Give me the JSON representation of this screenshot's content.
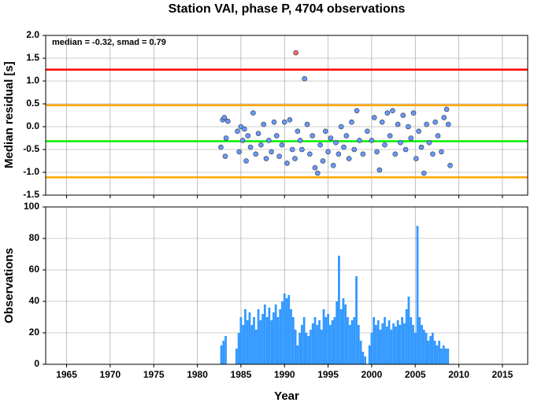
{
  "chart_data": [
    {
      "type": "scatter",
      "title": "Station VAI, phase P, 4704 observations",
      "ylabel": "Median residual [s]",
      "annotation": "median = -0.32, smad = 0.79",
      "xlim": [
        1962.6,
        2017.9
      ],
      "xticks": [
        1965,
        1970,
        1975,
        1980,
        1985,
        1990,
        1995,
        2000,
        2005,
        2010,
        2015
      ],
      "ylim": [
        -1.5,
        2.0
      ],
      "yticks": [
        {
          "value": -1.5,
          "label": "-1.5"
        },
        {
          "value": -1,
          "label": "-1.0"
        },
        {
          "value": -0.5,
          "label": "-0.5"
        },
        {
          "value": 0,
          "label": "0.0"
        },
        {
          "value": 0.5,
          "label": "0.5"
        },
        {
          "value": 1,
          "label": "1.0"
        },
        {
          "value": 1.5,
          "label": "1.5"
        },
        {
          "value": 2,
          "label": "2.0"
        }
      ],
      "grid": true,
      "hlines": [
        {
          "value": 1.25,
          "color": "#ff0000"
        },
        {
          "value": 0.47,
          "color": "#ffa500"
        },
        {
          "value": -1.11,
          "color": "#ffa500"
        },
        {
          "value": -0.32,
          "color": "#00ee00"
        }
      ],
      "series": [
        {
          "color": "#6699ff",
          "x": [
            1982.7,
            1982.9,
            1983.1,
            1983.3,
            1983.5,
            1983.2,
            1984.6,
            1984.8,
            1985.0,
            1985.2,
            1985.4,
            1985.6,
            1985.8,
            1986.1,
            1986.4,
            1986.7,
            1987.0,
            1987.3,
            1987.6,
            1987.9,
            1988.2,
            1988.5,
            1988.8,
            1989.1,
            1989.4,
            1989.7,
            1990.0,
            1990.3,
            1990.6,
            1990.9,
            1991.2,
            1991.5,
            1991.8,
            1992.0,
            1992.3,
            1992.6,
            1992.9,
            1993.2,
            1993.5,
            1993.8,
            1994.1,
            1994.4,
            1994.7,
            1995.0,
            1995.3,
            1995.6,
            1995.9,
            1996.2,
            1996.5,
            1996.8,
            1997.1,
            1997.4,
            1997.7,
            1998.0,
            1998.3,
            1998.6,
            1999.0,
            1999.5,
            2000.0,
            2000.3,
            2000.6,
            2000.9,
            2001.2,
            2001.5,
            2001.8,
            2002.1,
            2002.4,
            2002.7,
            2003.0,
            2003.3,
            2003.6,
            2003.9,
            2004.2,
            2004.5,
            2004.8,
            2005.1,
            2005.4,
            2005.7,
            2006.0,
            2006.3,
            2006.6,
            2007.0,
            2007.3,
            2007.6,
            2008.0,
            2008.3,
            2008.6,
            2008.8,
            2009.0
          ],
          "values": [
            -0.45,
            0.15,
            0.2,
            -0.25,
            0.12,
            -0.65,
            -0.1,
            -0.55,
            0.0,
            -0.3,
            -0.05,
            -0.75,
            -0.2,
            -0.45,
            0.3,
            -0.6,
            -0.15,
            -0.4,
            0.05,
            -0.7,
            -0.3,
            -0.55,
            0.1,
            -0.2,
            -0.65,
            -0.4,
            0.1,
            -0.8,
            0.15,
            -0.5,
            -0.7,
            -0.1,
            -0.3,
            -0.5,
            1.05,
            0.05,
            -0.6,
            -0.2,
            -0.9,
            -1.02,
            -0.4,
            -0.75,
            -0.1,
            -0.55,
            -0.25,
            -0.85,
            -0.35,
            -0.6,
            0.0,
            -0.45,
            -0.2,
            -0.7,
            0.1,
            -0.5,
            0.35,
            -0.3,
            -0.6,
            -0.1,
            -0.3,
            0.2,
            -0.55,
            -0.95,
            0.1,
            -0.4,
            0.3,
            -0.2,
            0.35,
            -0.6,
            0.05,
            -0.35,
            0.25,
            -0.5,
            0.0,
            -0.25,
            0.3,
            -0.7,
            -0.1,
            -0.45,
            -1.02,
            0.05,
            -0.35,
            -0.6,
            0.1,
            -0.2,
            -0.55,
            0.2,
            0.38,
            0.05,
            -0.85
          ]
        },
        {
          "color": "#ff6666",
          "x": [
            1991.3
          ],
          "values": [
            1.62
          ]
        }
      ]
    },
    {
      "type": "bar",
      "ylabel": "Observations",
      "xlabel": "Year",
      "color": "#3399ff",
      "xlim": [
        1962.6,
        2017.9
      ],
      "xticks": [
        1965,
        1970,
        1975,
        1980,
        1985,
        1990,
        1995,
        2000,
        2005,
        2010,
        2015
      ],
      "ylim": [
        0,
        100
      ],
      "yticks": [
        0,
        20,
        40,
        60,
        80,
        100
      ],
      "grid": true,
      "x": [
        1982.75,
        1983,
        1983.25,
        1984.5,
        1984.75,
        1985,
        1985.25,
        1985.5,
        1985.75,
        1986,
        1986.25,
        1986.5,
        1986.75,
        1987,
        1987.25,
        1987.5,
        1987.75,
        1988,
        1988.25,
        1988.5,
        1988.75,
        1989,
        1989.25,
        1989.5,
        1989.75,
        1990,
        1990.25,
        1990.5,
        1990.75,
        1991,
        1991.25,
        1991.5,
        1991.75,
        1992,
        1992.25,
        1992.5,
        1992.75,
        1993,
        1993.25,
        1993.5,
        1993.75,
        1994,
        1994.25,
        1994.5,
        1994.75,
        1995,
        1995.25,
        1995.5,
        1995.75,
        1996,
        1996.25,
        1996.5,
        1996.75,
        1997,
        1997.25,
        1997.5,
        1997.75,
        1998,
        1998.25,
        1998.5,
        1998.75,
        1999,
        1999.25,
        1999.75,
        2000,
        2000.25,
        2000.5,
        2000.75,
        2001,
        2001.25,
        2001.5,
        2001.75,
        2002,
        2002.25,
        2002.5,
        2002.75,
        2003,
        2003.25,
        2003.5,
        2003.75,
        2004,
        2004.25,
        2004.5,
        2004.75,
        2005,
        2005.25,
        2005.5,
        2005.75,
        2006,
        2006.25,
        2006.5,
        2006.75,
        2007,
        2007.25,
        2007.5,
        2007.75,
        2008,
        2008.25,
        2008.5,
        2008.75
      ],
      "values": [
        12,
        15,
        18,
        10,
        20,
        30,
        25,
        35,
        28,
        33,
        25,
        30,
        22,
        35,
        28,
        32,
        38,
        30,
        36,
        28,
        33,
        38,
        30,
        35,
        40,
        45,
        42,
        44,
        35,
        30,
        22,
        12,
        20,
        25,
        30,
        20,
        18,
        22,
        26,
        30,
        25,
        28,
        22,
        35,
        30,
        32,
        25,
        28,
        30,
        40,
        69,
        35,
        42,
        38,
        30,
        25,
        28,
        30,
        56,
        25,
        15,
        8,
        5,
        12,
        20,
        30,
        25,
        28,
        22,
        26,
        30,
        24,
        28,
        22,
        26,
        24,
        28,
        25,
        30,
        26,
        35,
        43,
        30,
        25,
        20,
        88,
        30,
        25,
        22,
        20,
        15,
        18,
        20,
        15,
        12,
        15,
        10,
        12,
        10,
        10
      ]
    }
  ]
}
